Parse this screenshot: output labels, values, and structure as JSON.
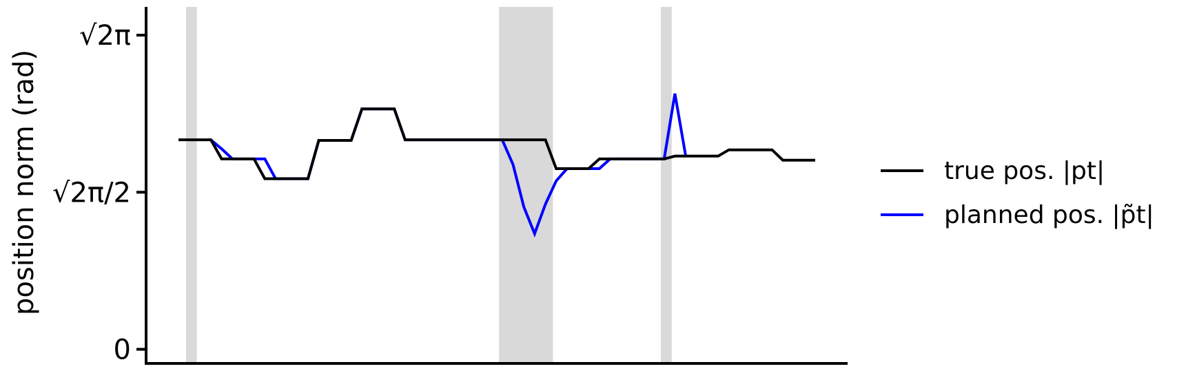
{
  "chart_data": {
    "type": "line",
    "ylabel": "position norm (rad)",
    "xlabel": "",
    "x_ticks_shown": false,
    "grid": false,
    "legend_placement": "right",
    "ylim": [
      -0.045,
      1.09
    ],
    "y_ticks": [
      {
        "value": 0,
        "label": "0"
      },
      {
        "value": 0.5,
        "label": "√2π/2"
      },
      {
        "value": 1,
        "label": "√2π"
      }
    ],
    "xlim": [
      -3,
      62
    ],
    "shaded_regions": [
      [
        0.7,
        1.7
      ],
      [
        29.7,
        34.7
      ],
      [
        44.7,
        45.7
      ]
    ],
    "series": [
      {
        "name": "true pos. |pt|",
        "color": "#000000",
        "x": [
          0,
          1,
          2,
          3,
          4,
          5,
          6,
          7,
          8,
          9,
          10,
          11,
          12,
          13,
          14,
          15,
          16,
          17,
          18,
          19,
          20,
          21,
          22,
          23,
          24,
          25,
          26,
          27,
          28,
          29,
          30,
          31,
          32,
          33,
          34,
          35,
          36,
          37,
          38,
          39,
          40,
          41,
          42,
          43,
          44,
          45,
          46,
          47,
          48,
          49,
          50,
          51,
          52,
          53,
          54,
          55,
          56,
          57,
          58,
          59
        ],
        "values": [
          0.667,
          0.667,
          0.667,
          0.667,
          0.606,
          0.606,
          0.606,
          0.606,
          0.543,
          0.543,
          0.543,
          0.543,
          0.543,
          0.665,
          0.665,
          0.665,
          0.665,
          0.765,
          0.765,
          0.765,
          0.765,
          0.667,
          0.667,
          0.667,
          0.667,
          0.667,
          0.667,
          0.667,
          0.667,
          0.667,
          0.667,
          0.667,
          0.667,
          0.667,
          0.667,
          0.575,
          0.575,
          0.575,
          0.575,
          0.606,
          0.606,
          0.606,
          0.606,
          0.606,
          0.606,
          0.606,
          0.615,
          0.615,
          0.615,
          0.615,
          0.615,
          0.635,
          0.635,
          0.635,
          0.635,
          0.635,
          0.602,
          0.602,
          0.602,
          0.602
        ]
      },
      {
        "name": "planned pos. |p̃t|",
        "color": "#0000ff",
        "x": [
          3,
          4,
          5,
          6,
          7,
          8,
          9,
          10,
          11,
          12,
          13,
          14,
          15,
          16,
          17,
          18,
          19,
          20,
          21,
          22,
          23,
          24,
          25,
          26,
          27,
          28,
          29,
          30,
          31,
          32,
          33,
          34,
          35,
          36,
          37,
          38,
          39,
          40,
          41,
          42,
          43,
          44,
          45,
          46,
          47
        ],
        "values": [
          0.667,
          0.638,
          0.606,
          0.606,
          0.606,
          0.606,
          0.543,
          0.543,
          0.543,
          0.543,
          0.665,
          0.665,
          0.665,
          0.665,
          0.765,
          0.765,
          0.765,
          0.765,
          0.667,
          0.667,
          0.667,
          0.667,
          0.667,
          0.667,
          0.667,
          0.667,
          0.667,
          0.667,
          0.588,
          0.453,
          0.368,
          0.462,
          0.536,
          0.575,
          0.575,
          0.575,
          0.575,
          0.606,
          0.606,
          0.606,
          0.606,
          0.606,
          0.606,
          0.814,
          0.615
        ]
      }
    ]
  }
}
